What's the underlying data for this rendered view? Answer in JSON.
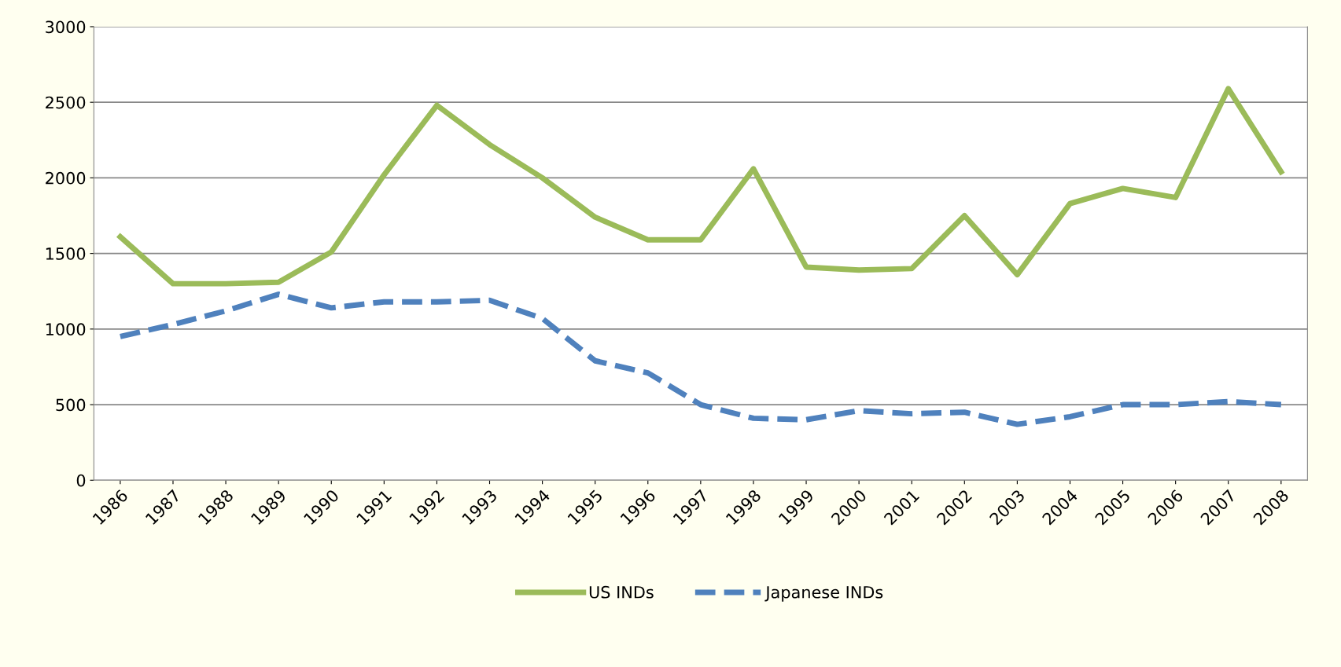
{
  "chart_data": {
    "type": "line",
    "categories": [
      "1986",
      "1987",
      "1988",
      "1989",
      "1990",
      "1991",
      "1992",
      "1993",
      "1994",
      "1995",
      "1996",
      "1997",
      "1998",
      "1999",
      "2000",
      "2001",
      "2002",
      "2003",
      "2004",
      "2005",
      "2006",
      "2007",
      "2008"
    ],
    "series": [
      {
        "name": "US INDs",
        "color": "#9bbb59",
        "line_style": "solid",
        "values": [
          1610,
          1300,
          1300,
          1310,
          1510,
          2020,
          2480,
          2220,
          2000,
          1740,
          1590,
          1590,
          2060,
          1410,
          1390,
          1400,
          1750,
          1360,
          1830,
          1930,
          1870,
          2590,
          2040
        ]
      },
      {
        "name": "Japanese INDs",
        "color": "#4f81bd",
        "line_style": "dashed",
        "values": [
          950,
          1030,
          1120,
          1230,
          1140,
          1180,
          1180,
          1190,
          1070,
          790,
          710,
          500,
          410,
          400,
          460,
          440,
          450,
          370,
          420,
          500,
          500,
          520,
          500
        ]
      }
    ],
    "ylim": [
      0,
      3000
    ],
    "yticks": [
      0,
      500,
      1000,
      1500,
      2000,
      2500,
      3000
    ],
    "grid": "y",
    "legend": "bottom",
    "marker": "none"
  }
}
